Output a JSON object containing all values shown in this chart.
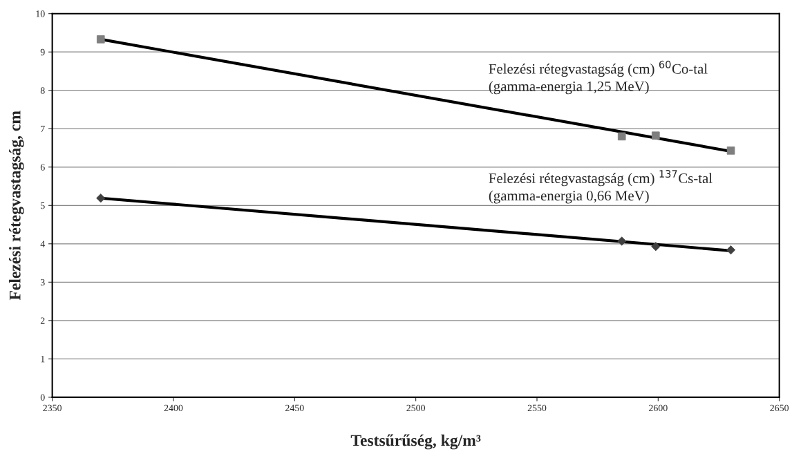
{
  "chart_data": {
    "type": "scatter",
    "xlabel": "Testsűrűség, kg/m³",
    "ylabel": "Felezési rétegvastagság, cm",
    "series": [
      {
        "color": "#7f7f7f",
        "marker": "square",
        "x": [
          2370,
          2585,
          2599,
          2630
        ],
        "values": [
          9.33,
          6.8,
          6.82,
          6.43
        ]
      },
      {
        "color": "#404040",
        "marker": "diamond",
        "x": [
          2370,
          2585,
          2599,
          2630
        ],
        "values": [
          5.19,
          4.07,
          3.93,
          3.84
        ]
      },
      {
        "type": "line",
        "color": "#000000",
        "marker": "none",
        "x": [
          2370,
          2630
        ],
        "values": [
          9.33,
          6.41
        ]
      },
      {
        "type": "line",
        "color": "#000000",
        "marker": "none",
        "x": [
          2370,
          2630
        ],
        "values": [
          5.19,
          3.82
        ]
      }
    ],
    "annotations": [
      "Felezési rétegvastagság (cm) $^{60}$Co-tal",
      "(gamma-energia 1,25 MeV)",
      "Felezési rétegvastagság (cm) $^{137}$Cs-tal",
      "(gamma-energia 0,66 MeV)"
    ],
    "xlim": [
      2350,
      2650
    ],
    "xticks": [
      2350,
      2400,
      2450,
      2500,
      2550,
      2600,
      2650
    ],
    "ylim": [
      0,
      10
    ],
    "yticks": [
      0,
      1,
      2,
      3,
      4,
      5,
      6,
      7,
      8,
      9,
      10
    ],
    "grid": "y"
  }
}
